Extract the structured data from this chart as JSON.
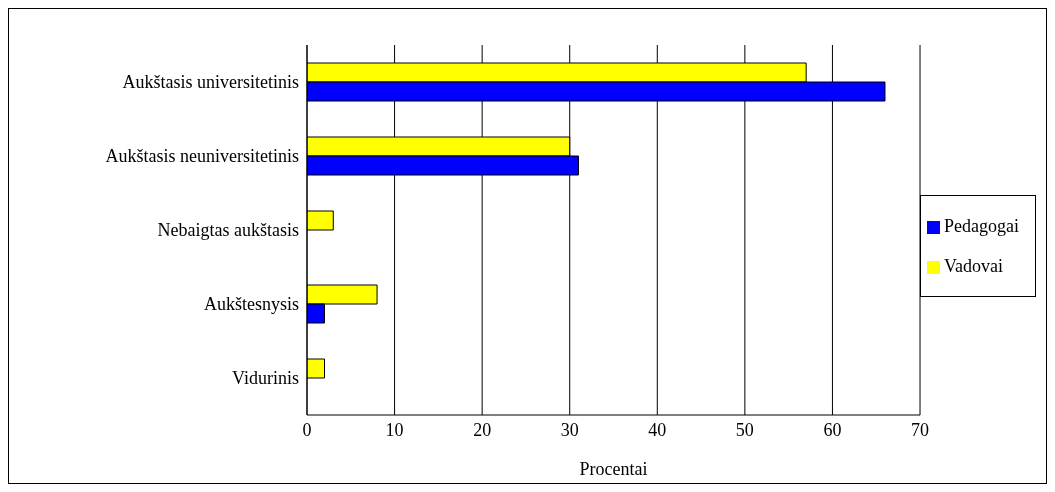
{
  "chart_data": {
    "type": "bar",
    "orientation": "horizontal",
    "xlabel": "Procentai",
    "categories": [
      "Aukštasis universitetinis",
      "Aukštasis neuniversitetinis",
      "Nebaigtas aukštasis",
      "Aukštesnysis",
      "Vidurinis"
    ],
    "series": [
      {
        "name": "Vadovai",
        "color": "#ffff00",
        "values": [
          57,
          30,
          3,
          8,
          2
        ]
      },
      {
        "name": "Pedagogai",
        "color": "#0000ff",
        "values": [
          66,
          31,
          null,
          2,
          null
        ]
      }
    ],
    "xlim": [
      0,
      70
    ],
    "xticks": [
      0,
      10,
      20,
      30,
      40,
      50,
      60,
      70
    ],
    "grid": "x",
    "legend": "right"
  }
}
